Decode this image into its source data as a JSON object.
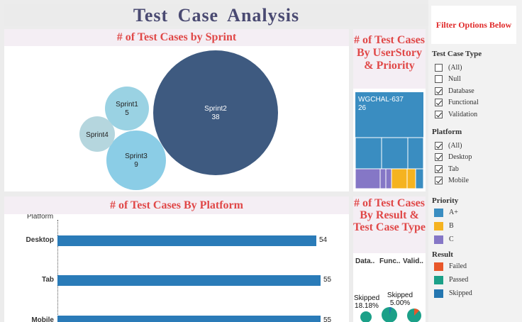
{
  "title": "Test Case Analysis",
  "sprint_panel": {
    "header": "# of Test Cases by Sprint"
  },
  "story_panel": {
    "header": "# of Test Cases By UserStory & Priority",
    "top_label": "WGCHAL-637",
    "top_value": "26"
  },
  "platform_panel": {
    "header": "# of Test Cases By Platform",
    "axis_label": "Platform"
  },
  "result_panel": {
    "header": "# of Test Cases By Result & Test Case Type",
    "columns": [
      "Data..",
      "Func..",
      "Valid.."
    ],
    "pie_labels": [
      {
        "label": "Skipped",
        "pct": "18.18%"
      },
      {
        "label": "Skipped",
        "pct": "5.00%"
      }
    ]
  },
  "filters": {
    "banner": "Filter Options Below",
    "test_case_type": {
      "title": "Test Case Type",
      "options": [
        {
          "label": "(All)",
          "checked": false
        },
        {
          "label": "Null",
          "checked": false
        },
        {
          "label": "Database",
          "checked": true
        },
        {
          "label": "Functional",
          "checked": true
        },
        {
          "label": "Validation",
          "checked": true
        }
      ]
    },
    "platform": {
      "title": "Platform",
      "options": [
        {
          "label": "(All)",
          "checked": true
        },
        {
          "label": "Desktop",
          "checked": true
        },
        {
          "label": "Tab",
          "checked": true
        },
        {
          "label": "Mobile",
          "checked": true
        }
      ]
    },
    "priority": {
      "title": "Priority",
      "items": [
        {
          "label": "A+",
          "color": "#3a8dc1"
        },
        {
          "label": "B",
          "color": "#f5b320"
        },
        {
          "label": "C",
          "color": "#8577c6"
        }
      ]
    },
    "result": {
      "title": "Result",
      "items": [
        {
          "label": "Failed",
          "color": "#e8572a"
        },
        {
          "label": "Passed",
          "color": "#1ba088"
        },
        {
          "label": "Skipped",
          "color": "#2476b0"
        }
      ]
    }
  },
  "chart_data": [
    {
      "type": "bubble",
      "title": "# of Test Cases by Sprint",
      "series": [
        {
          "name": "Sprint2",
          "value": 38,
          "color": "#3e5a80"
        },
        {
          "name": "Sprint1",
          "value": 5,
          "color": "#9ad2e3"
        },
        {
          "name": "Sprint3",
          "value": 9,
          "color": "#8bcde6"
        },
        {
          "name": "Sprint4",
          "value": null,
          "color": "#b5d6de"
        }
      ]
    },
    {
      "type": "bar",
      "title": "# of Test Cases By Platform",
      "xlabel": "Platform",
      "categories": [
        "Desktop",
        "Tab",
        "Mobile"
      ],
      "values": [
        54,
        55,
        55
      ],
      "color": "#2a7bb8"
    }
  ]
}
